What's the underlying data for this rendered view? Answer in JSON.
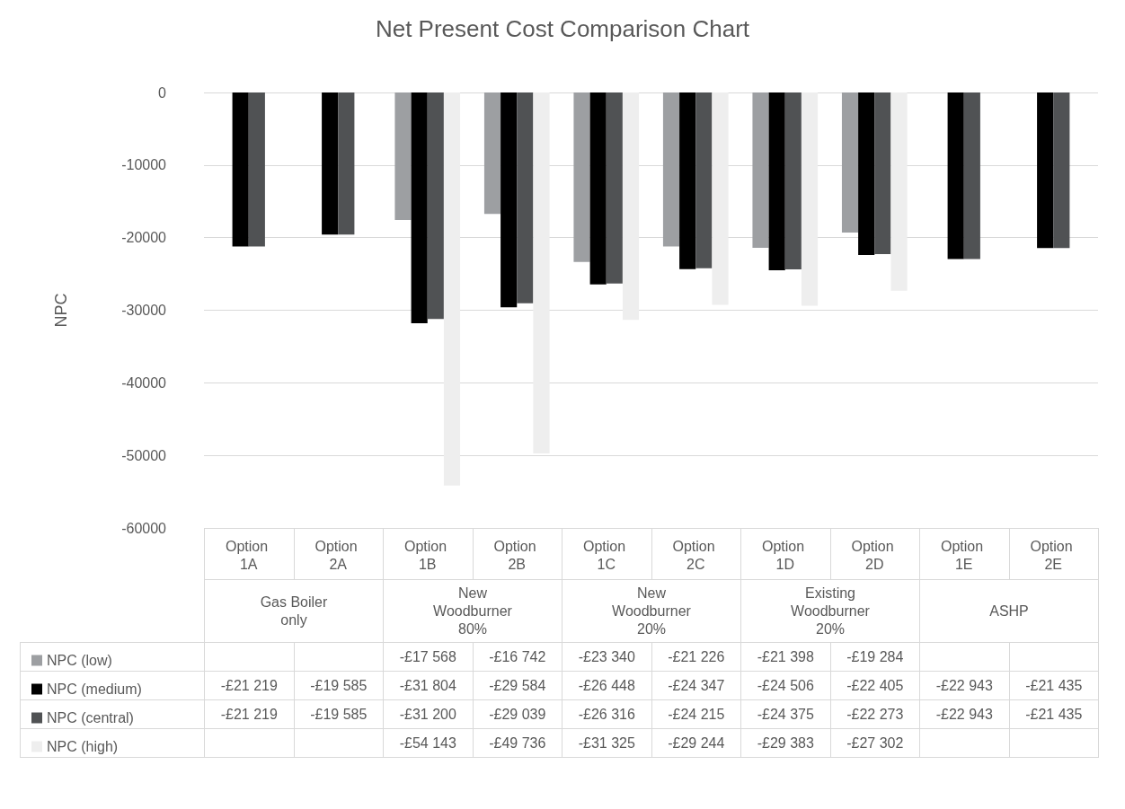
{
  "chart_data": {
    "type": "bar",
    "title": "Net Present Cost Comparison Chart",
    "ylabel": "NPC",
    "categories": [
      "Option 1A",
      "Option 2A",
      "Option 1B",
      "Option 2B",
      "Option 1C",
      "Option 2C",
      "Option 1D",
      "Option 2D",
      "Option 1E",
      "Option 2E"
    ],
    "annotations": [
      "Gas Boiler only",
      "New Woodburner 80%",
      "New Woodburner 20%",
      "Existing Woodburner 20%",
      "ASHP"
    ],
    "series": [
      {
        "name": "NPC (low)",
        "color": "#9d9fa2",
        "values": [
          null,
          null,
          -17568,
          -16742,
          -23340,
          -21226,
          -21398,
          -19284,
          null,
          null
        ],
        "value_labels": [
          null,
          null,
          "-£17 568",
          "-£16 742",
          "-£23 340",
          "-£21 226",
          "-£21 398",
          "-£19 284",
          null,
          null
        ]
      },
      {
        "name": "NPC (medium)",
        "color": "#000000",
        "values": [
          -21219,
          -19585,
          -31804,
          -29584,
          -26448,
          -24347,
          -24506,
          -22405,
          -22943,
          -21435
        ],
        "value_labels": [
          "-£21 219",
          "-£19 585",
          "-£31 804",
          "-£29 584",
          "-£26 448",
          "-£24 347",
          "-£24 506",
          "-£22 405",
          "-£22 943",
          "-£21 435"
        ]
      },
      {
        "name": "NPC (central)",
        "color": "#505254",
        "values": [
          -21219,
          -19585,
          -31200,
          -29039,
          -26316,
          -24215,
          -24375,
          -22273,
          -22943,
          -21435
        ],
        "value_labels": [
          "-£21 219",
          "-£19 585",
          "-£31 200",
          "-£29 039",
          "-£26 316",
          "-£24 215",
          "-£24 375",
          "-£22 273",
          "-£22 943",
          "-£21 435"
        ]
      },
      {
        "name": "NPC (high)",
        "color": "#eeeeee",
        "values": [
          null,
          null,
          -54143,
          -49736,
          -31325,
          -29244,
          -29383,
          -27302,
          null,
          null
        ],
        "value_labels": [
          null,
          null,
          "-£54 143",
          "-£49 736",
          "-£31 325",
          "-£29 244",
          "-£29 383",
          "-£27 302",
          null,
          null
        ]
      }
    ],
    "ylim": [
      -60000,
      0
    ],
    "yticks": [
      -60000,
      -50000,
      -40000,
      -30000,
      -20000,
      -10000,
      0
    ],
    "grid": "y",
    "legend": "bottom left"
  }
}
